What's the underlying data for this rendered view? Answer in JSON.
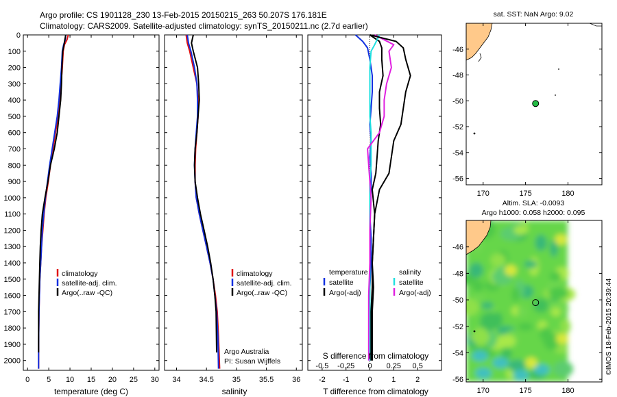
{
  "header": {
    "line1": "Argo profile: CS 1901128_230 13-Feb-2015 20150215_263 50.207S 176.181E",
    "line2": "Climatology: CARS2009. Satellite-adjusted climatology: synTS_20150211.nc (2.7d earlier)"
  },
  "colors": {
    "climatology": "#e01010",
    "satellite": "#1030e0",
    "argo": "#000000",
    "sal_satellite": "#20e0e0",
    "sal_argo": "#e020e0"
  },
  "chart_data": [
    {
      "id": "temperature",
      "type": "line",
      "xlabel": "temperature (deg C)",
      "ylabel": "",
      "xlim": [
        -1,
        31
      ],
      "ylim": [
        2060,
        0
      ],
      "xticks": [
        0,
        5,
        10,
        15,
        20,
        25,
        30
      ],
      "yticks": [
        0,
        100,
        200,
        300,
        400,
        500,
        600,
        700,
        800,
        900,
        1000,
        1100,
        1200,
        1300,
        1400,
        1500,
        1600,
        1700,
        1800,
        1900,
        2000
      ],
      "legend": [
        "climatology",
        "satellite-adj. clim.",
        "Argo(..raw -QC)"
      ],
      "series": [
        {
          "name": "climatology",
          "color": "#e01010",
          "x": [
            9.6,
            9.3,
            8.7,
            8.4,
            8.2,
            7.9,
            7.6,
            7.2,
            6.6,
            6.0,
            5.4,
            4.9,
            4.3,
            3.9,
            3.6,
            3.3,
            3.1,
            2.9,
            2.8,
            2.7,
            2.6,
            2.6
          ],
          "y": [
            0,
            30,
            60,
            100,
            200,
            300,
            400,
            500,
            600,
            700,
            800,
            900,
            1000,
            1100,
            1200,
            1300,
            1400,
            1500,
            1600,
            1700,
            1900,
            2050
          ]
        },
        {
          "name": "satellite-adj. clim.",
          "color": "#1030e0",
          "x": [
            9.0,
            8.9,
            8.5,
            8.2,
            8.0,
            7.7,
            7.4,
            7.0,
            6.4,
            5.8,
            5.2,
            4.7,
            4.2,
            3.8,
            3.5,
            3.3,
            3.1,
            2.9,
            2.8,
            2.7,
            2.6,
            2.6
          ],
          "y": [
            0,
            30,
            60,
            100,
            200,
            300,
            400,
            500,
            600,
            700,
            800,
            900,
            1000,
            1100,
            1200,
            1300,
            1400,
            1500,
            1600,
            1700,
            1900,
            2050
          ]
        },
        {
          "name": "Argo(..raw -QC)",
          "color": "#000000",
          "x": [
            9.0,
            8.8,
            8.6,
            8.3,
            8.1,
            8.0,
            7.8,
            7.4,
            7.0,
            6.3,
            5.4,
            4.8,
            4.1,
            3.5,
            3.2,
            3.0,
            2.9,
            2.8,
            2.7,
            2.6,
            2.6
          ],
          "y": [
            0,
            30,
            60,
            100,
            200,
            300,
            400,
            500,
            600,
            700,
            800,
            900,
            1000,
            1100,
            1200,
            1300,
            1400,
            1500,
            1600,
            1700,
            1950
          ]
        }
      ]
    },
    {
      "id": "salinity",
      "type": "line",
      "xlabel": "salinity",
      "ylabel": "",
      "xlim": [
        33.8,
        36.1
      ],
      "ylim": [
        2060,
        0
      ],
      "xticks": [
        34,
        34.5,
        35,
        35.5,
        36
      ],
      "legend": [
        "climatology",
        "satellite-adj. clim.",
        "Argo(..raw -QC)"
      ],
      "annotation": [
        "Argo Australia",
        "PI: Susan Wijffels"
      ],
      "series": [
        {
          "name": "climatology",
          "color": "#e01010",
          "x": [
            34.16,
            34.18,
            34.22,
            34.28,
            34.34,
            34.36,
            34.36,
            34.34,
            34.32,
            34.31,
            34.31,
            34.33,
            34.38,
            34.44,
            34.5,
            34.56,
            34.61,
            34.65,
            34.68,
            34.7,
            34.72
          ],
          "y": [
            0,
            50,
            100,
            200,
            300,
            400,
            500,
            600,
            700,
            800,
            900,
            1000,
            1100,
            1200,
            1300,
            1400,
            1500,
            1600,
            1700,
            1850,
            2050
          ]
        },
        {
          "name": "satellite-adj. clim.",
          "color": "#1030e0",
          "x": [
            34.18,
            34.2,
            34.24,
            34.3,
            34.34,
            34.35,
            34.35,
            34.33,
            34.31,
            34.3,
            34.31,
            34.33,
            34.38,
            34.44,
            34.5,
            34.56,
            34.61,
            34.64,
            34.67,
            34.69,
            34.7
          ],
          "y": [
            0,
            50,
            100,
            200,
            300,
            400,
            500,
            600,
            700,
            800,
            900,
            1000,
            1100,
            1200,
            1300,
            1400,
            1500,
            1600,
            1700,
            1850,
            2050
          ]
        },
        {
          "name": "Argo(..raw -QC)",
          "color": "#000000",
          "x": [
            34.28,
            34.25,
            34.28,
            34.35,
            34.37,
            34.38,
            34.36,
            34.34,
            34.31,
            34.3,
            34.31,
            34.35,
            34.4,
            34.46,
            34.52,
            34.57,
            34.61,
            34.64,
            34.66,
            34.67
          ],
          "y": [
            0,
            50,
            100,
            200,
            300,
            400,
            500,
            600,
            700,
            800,
            900,
            1000,
            1100,
            1200,
            1300,
            1400,
            1500,
            1600,
            1700,
            1950
          ]
        }
      ]
    },
    {
      "id": "difference",
      "type": "line",
      "xlabel": "T difference from climatology",
      "xlabel2": "S difference from climatology",
      "xlim": [
        -2.6,
        3.0
      ],
      "ylim": [
        2060,
        0
      ],
      "xticks": [
        -2,
        -1,
        0,
        1,
        2
      ],
      "xticks2": [
        -0.5,
        -0.25,
        0,
        0.25,
        0.5
      ],
      "legend_left_title": "temperature",
      "legend_left": [
        "satellite",
        "Argo(-adj)"
      ],
      "legend_right_title": "salinity",
      "legend_right": [
        "satellite",
        "Argo(-adj)"
      ],
      "series": [
        {
          "name": "satellite",
          "color": "#1030e0",
          "x": [
            -0.6,
            -0.3,
            -0.1,
            0.0,
            0.1,
            0.1,
            0.05,
            0.0,
            0.05,
            0.0,
            0.05,
            0.05,
            0.0,
            0.05,
            0.05,
            0.0,
            0.0,
            0.0,
            0.0
          ],
          "y": [
            0,
            40,
            80,
            150,
            250,
            350,
            450,
            550,
            650,
            750,
            850,
            950,
            1100,
            1250,
            1400,
            1550,
            1700,
            1850,
            2000
          ]
        },
        {
          "name": "Argo(-adj)",
          "color": "#000000",
          "x": [
            0.0,
            0.4,
            0.5,
            0.5,
            0.55,
            0.4,
            0.4,
            0.45,
            0.35,
            0.3,
            0.25,
            0.1,
            0.2,
            0.15,
            0.1,
            0.15,
            0.1,
            0.1,
            0.1
          ],
          "y": [
            0,
            40,
            80,
            150,
            250,
            350,
            450,
            550,
            650,
            750,
            850,
            950,
            1100,
            1250,
            1400,
            1550,
            1700,
            1850,
            2000
          ]
        },
        {
          "name": "sal satellite",
          "color": "#20e0e0",
          "x": [
            0.4,
            0.2,
            0.05,
            0.0,
            0.0,
            0.0,
            0.0,
            0.05,
            0.05,
            0.05,
            0.0,
            0.0,
            0.0,
            0.0,
            0.0,
            0.0,
            0.0,
            0.0
          ],
          "y": [
            0,
            60,
            100,
            200,
            300,
            400,
            500,
            600,
            700,
            800,
            900,
            1000,
            1200,
            1400,
            1600,
            1800,
            1900,
            2000
          ]
        },
        {
          "name": "sal Argo(-adj)",
          "color": "#e020e0",
          "x": [
            0.2,
            1.0,
            0.8,
            0.9,
            0.7,
            0.6,
            0.6,
            0.4,
            -0.1,
            -0.05,
            0.0,
            0.05,
            0.0,
            0.0,
            -0.05,
            -0.05,
            -0.05,
            -0.05
          ],
          "y": [
            0,
            60,
            100,
            200,
            300,
            400,
            500,
            600,
            700,
            800,
            900,
            1000,
            1200,
            1400,
            1600,
            1800,
            1900,
            2000
          ]
        },
        {
          "name": "S diff Argo",
          "color": "#000000",
          "x": [
            0.0,
            1.1,
            1.4,
            1.5,
            1.7,
            1.5,
            1.4,
            1.3,
            1.0,
            0.9,
            0.8,
            0.4,
            0.2,
            0.15,
            0.1,
            0.1,
            0.05,
            0.05,
            0.05
          ],
          "y": [
            0,
            40,
            80,
            150,
            250,
            350,
            450,
            550,
            650,
            750,
            850,
            950,
            1100,
            1250,
            1400,
            1550,
            1700,
            1850,
            2000
          ]
        }
      ]
    },
    {
      "id": "map_sst",
      "type": "scatter",
      "title": "sat. SST: NaN Argo: 9.02",
      "xlim": [
        168,
        184
      ],
      "ylim": [
        -56.5,
        -44
      ],
      "xticks": [
        170,
        175,
        180
      ],
      "yticks": [
        -46,
        -48,
        -50,
        -52,
        -54,
        -56
      ],
      "point": {
        "x": 176.181,
        "y": -50.207
      }
    },
    {
      "id": "map_sla",
      "type": "heatmap",
      "title": "Altim. SLA: -0.0093",
      "subtitle": "Argo h1000: 0.058 h2000: 0.095",
      "xlim": [
        168,
        184
      ],
      "ylim": [
        -56.2,
        -44
      ],
      "xticks": [
        170,
        175,
        180
      ],
      "yticks": [
        -46,
        -48,
        -50,
        -52,
        -54,
        -56
      ],
      "point": {
        "x": 176.181,
        "y": -50.207
      }
    }
  ],
  "side_label": "©IMOS 18-Feb-2015 20:39:44"
}
